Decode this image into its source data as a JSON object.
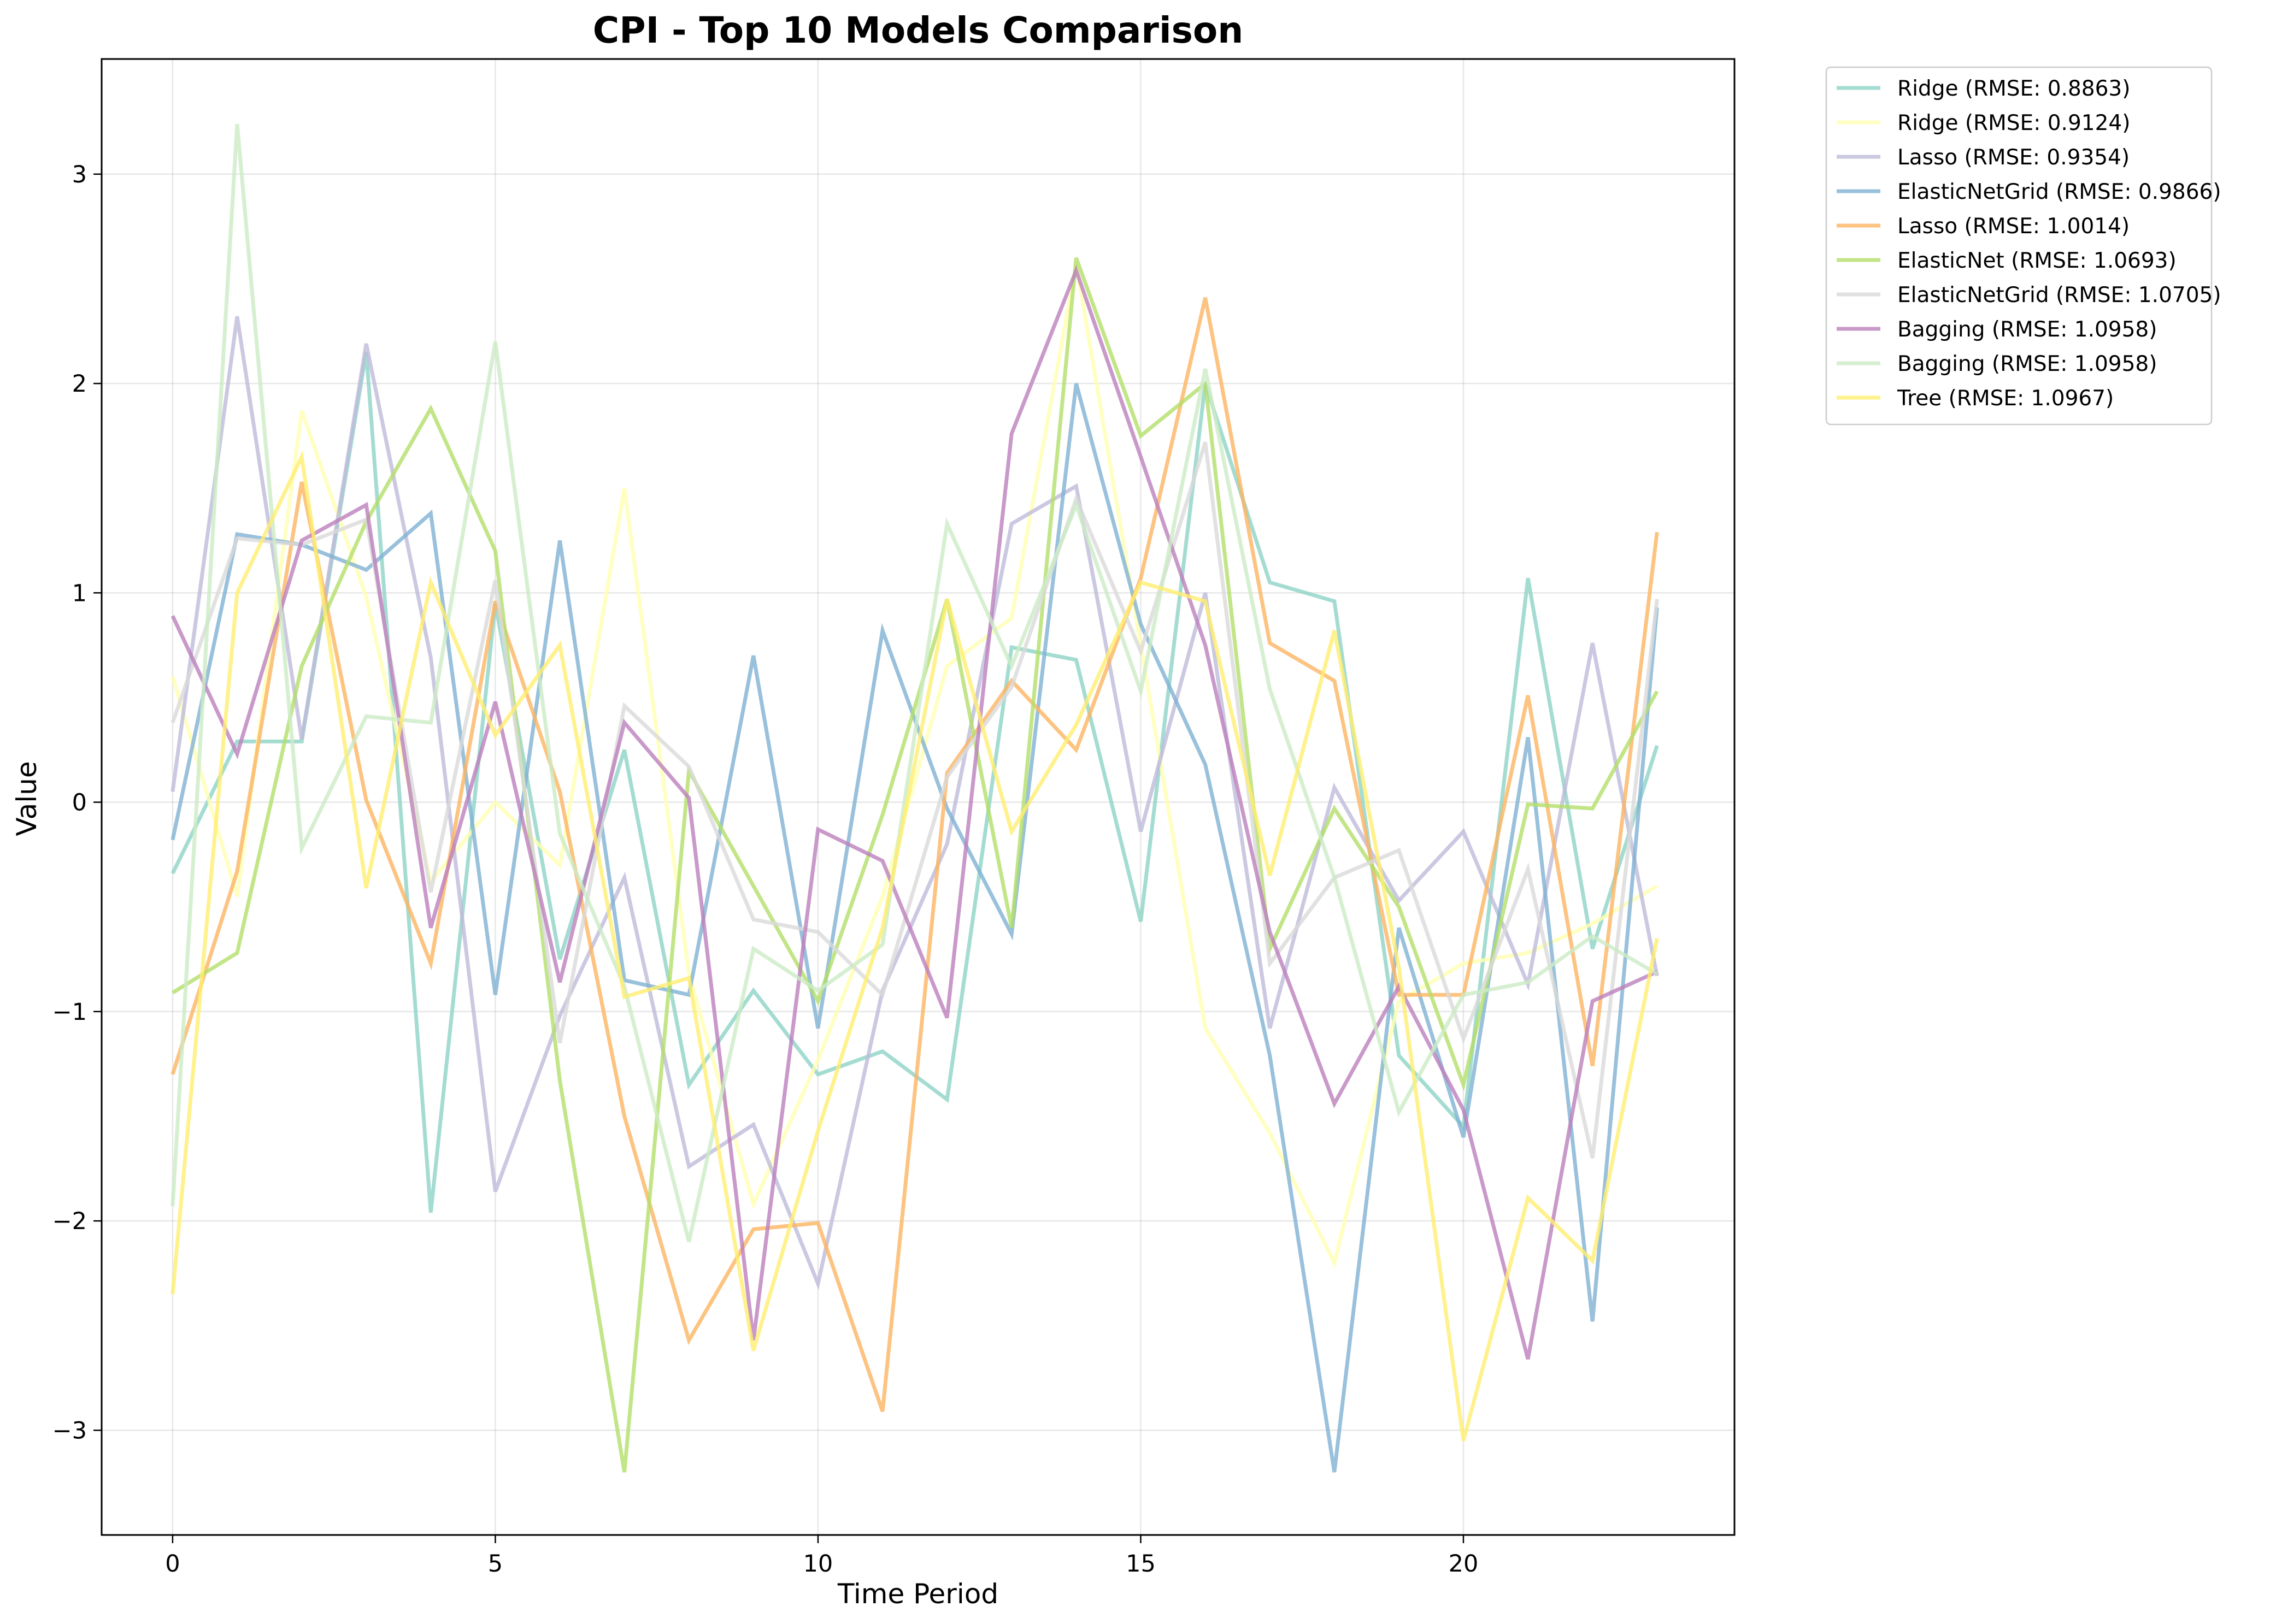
{
  "chart_data": {
    "type": "line",
    "title": "CPI - Top 10 Models Comparison",
    "xlabel": "Time Period",
    "ylabel": "Value",
    "xlim": [
      -1.1,
      24.2
    ],
    "ylim": [
      -3.5,
      3.55
    ],
    "xticks": [
      0,
      5,
      10,
      15,
      20
    ],
    "yticks": [
      -3,
      -2,
      -1,
      0,
      1,
      2,
      3
    ],
    "ytick_labels": [
      "−3",
      "−2",
      "−1",
      "0",
      "1",
      "2",
      "3"
    ],
    "grid": true,
    "legend_position": "outside upper right",
    "x": [
      0,
      1,
      2,
      3,
      4,
      5,
      6,
      7,
      8,
      9,
      10,
      11,
      12,
      13,
      14,
      15,
      16,
      17,
      18,
      19,
      20,
      21,
      22,
      23
    ],
    "series": [
      {
        "name": "Ridge (RMSE: 0.8863)",
        "color": "#8dd3c7",
        "values": [
          -0.34,
          0.29,
          0.29,
          2.15,
          -1.96,
          0.95,
          -0.75,
          0.25,
          -1.35,
          -0.9,
          -1.3,
          -1.19,
          -1.42,
          0.74,
          0.68,
          -0.57,
          2.0,
          1.05,
          0.96,
          -1.21,
          -1.55,
          1.07,
          -0.7,
          0.27
        ]
      },
      {
        "name": "Ridge (RMSE: 0.9124)",
        "color": "#ffffb3",
        "values": [
          0.6,
          -0.45,
          1.87,
          0.98,
          -0.38,
          0.0,
          -0.3,
          1.5,
          -0.82,
          -1.92,
          -1.23,
          -0.45,
          0.65,
          0.88,
          2.57,
          0.75,
          -1.08,
          -1.58,
          -2.2,
          -0.95,
          -0.77,
          -0.72,
          -0.58,
          -0.4
        ]
      },
      {
        "name": "Lasso (RMSE: 0.9354)",
        "color": "#bebada",
        "values": [
          0.05,
          2.32,
          0.3,
          2.19,
          0.69,
          -1.86,
          -1.02,
          -0.36,
          -1.74,
          -1.54,
          -2.3,
          -0.9,
          -0.2,
          1.33,
          1.51,
          -0.14,
          1.0,
          -1.08,
          0.07,
          -0.47,
          -0.14,
          -0.87,
          0.76,
          -0.83
        ]
      },
      {
        "name": "ElasticNetGrid (RMSE: 0.9866)",
        "color": "#80b1d3",
        "values": [
          -0.18,
          1.28,
          1.23,
          1.11,
          1.38,
          -0.92,
          1.25,
          -0.85,
          -0.92,
          0.7,
          -1.08,
          0.82,
          -0.03,
          -0.63,
          2.0,
          0.85,
          0.18,
          -1.21,
          -3.2,
          -0.6,
          -1.6,
          0.31,
          -2.48,
          0.93
        ]
      },
      {
        "name": "Lasso (RMSE: 1.0014)",
        "color": "#fdb462",
        "values": [
          -1.3,
          -0.33,
          1.53,
          0.01,
          -0.77,
          0.96,
          0.05,
          -1.5,
          -2.57,
          -2.04,
          -2.01,
          -2.91,
          0.14,
          0.58,
          0.25,
          1.07,
          2.41,
          0.76,
          0.58,
          -0.92,
          -0.92,
          0.51,
          -1.26,
          1.29
        ]
      },
      {
        "name": "ElasticNet (RMSE: 1.0693)",
        "color": "#b3de69",
        "values": [
          -0.91,
          -0.72,
          0.65,
          1.34,
          1.88,
          1.2,
          -1.33,
          -3.2,
          0.15,
          -0.4,
          -0.95,
          -0.06,
          0.97,
          -0.6,
          2.6,
          1.75,
          2.0,
          -0.7,
          -0.03,
          -0.5,
          -1.35,
          -0.01,
          -0.03,
          0.53
        ]
      },
      {
        "name": "ElasticNetGrid (RMSE: 1.0705)",
        "color": "#d9d9d9",
        "values": [
          0.38,
          1.26,
          1.23,
          1.35,
          -0.43,
          1.06,
          -1.15,
          0.46,
          0.17,
          -0.56,
          -0.62,
          -0.92,
          0.12,
          0.55,
          1.45,
          0.72,
          1.72,
          -0.77,
          -0.36,
          -0.23,
          -1.13,
          -0.32,
          -1.7,
          0.97
        ]
      },
      {
        "name": "Bagging (RMSE: 1.0958)",
        "color": "#bc80bd",
        "values": [
          0.89,
          0.23,
          1.25,
          1.42,
          -0.6,
          0.48,
          -0.86,
          0.38,
          0.02,
          -2.57,
          -0.13,
          -0.28,
          -1.03,
          1.76,
          2.54,
          1.65,
          0.75,
          -0.62,
          -1.44,
          -0.88,
          -1.47,
          -2.66,
          -0.95,
          -0.81
        ]
      },
      {
        "name": "Bagging (RMSE: 1.0958)",
        "color": "#ccebc5",
        "values": [
          -1.93,
          3.24,
          -0.22,
          0.41,
          0.38,
          2.2,
          -0.15,
          -0.88,
          -2.1,
          -0.7,
          -0.9,
          -0.68,
          1.33,
          0.65,
          1.42,
          0.53,
          2.07,
          0.54,
          -0.36,
          -1.48,
          -0.92,
          -0.86,
          -0.64,
          -0.82
        ]
      },
      {
        "name": "Tree (RMSE: 1.0967)",
        "color": "#ffed6f",
        "values": [
          -2.35,
          1.0,
          1.65,
          -0.41,
          1.05,
          0.32,
          0.75,
          -0.93,
          -0.84,
          -2.62,
          -1.57,
          -0.6,
          0.97,
          -0.14,
          0.37,
          1.05,
          0.96,
          -0.35,
          0.82,
          -0.79,
          -3.05,
          -1.89,
          -2.19,
          -0.65
        ]
      }
    ]
  }
}
